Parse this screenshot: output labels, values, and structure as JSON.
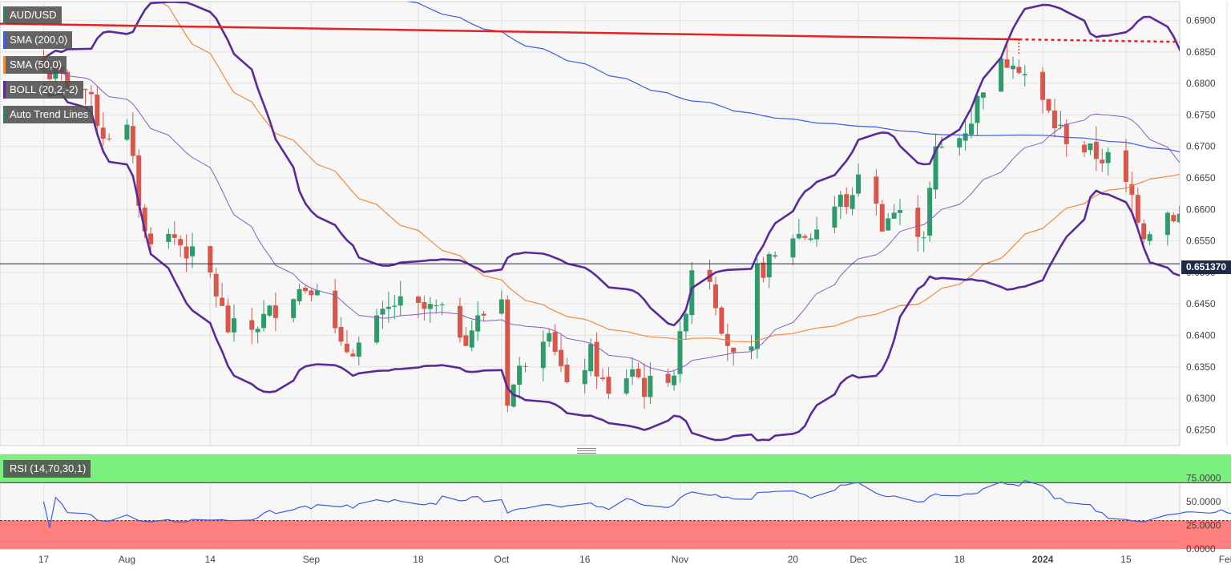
{
  "chart_data": [
    {
      "type": "candlestick",
      "symbol": "AUD/USD",
      "ylim": [
        0.6225,
        0.693
      ],
      "y_ticks": [
        "0.6250",
        "0.6300",
        "0.6350",
        "0.6400",
        "0.6450",
        "0.6500",
        "0.6550",
        "0.6600",
        "0.6650",
        "0.6700",
        "0.6750",
        "0.6800",
        "0.6850",
        "0.6900"
      ],
      "x_tick_labels": [
        "17",
        "Aug",
        "14",
        "Sep",
        "18",
        "Oct",
        "16",
        "Nov",
        "20",
        "Dec",
        "18",
        "2024",
        "15",
        "Feb"
      ],
      "last_price": "0.651370",
      "last_price_value": 0.65137,
      "grid": true,
      "indicators": [
        "SMA (200,0)",
        "SMA (50,0)",
        "BOLL (20,2,-2)",
        "Auto Trend Lines"
      ],
      "colors": {
        "up": "#2e9b6b",
        "down": "#d9574a",
        "sma200": "#3c5be0",
        "sma50": "#f08a3c",
        "boll_band": "#5a2a9a",
        "boll_mid": "#8a5cc0",
        "trend": "#e52222",
        "last_price_line": "#1d2a4a"
      },
      "ohlc_anchor_closes": [
        [
          "2023-07-17",
          0.682
        ],
        [
          "2023-07-24",
          0.679
        ],
        [
          "2023-07-27",
          0.672
        ],
        [
          "2023-07-31",
          0.6725
        ],
        [
          "2023-08-03",
          0.656
        ],
        [
          "2023-08-08",
          0.6555
        ],
        [
          "2023-08-14",
          0.6495
        ],
        [
          "2023-08-17",
          0.641
        ],
        [
          "2023-08-21",
          0.641
        ],
        [
          "2023-08-28",
          0.647
        ],
        [
          "2023-09-01",
          0.6485
        ],
        [
          "2023-09-05",
          0.6375
        ],
        [
          "2023-09-08",
          0.6385
        ],
        [
          "2023-09-14",
          0.645
        ],
        [
          "2023-09-18",
          0.644
        ],
        [
          "2023-09-21",
          0.644
        ],
        [
          "2023-09-26",
          0.64
        ],
        [
          "2023-09-29",
          0.6435
        ],
        [
          "2023-10-02",
          0.646
        ],
        [
          "2023-10-03",
          0.63
        ],
        [
          "2023-10-06",
          0.6365
        ],
        [
          "2023-10-10",
          0.642
        ],
        [
          "2023-10-13",
          0.631
        ],
        [
          "2023-10-17",
          0.637
        ],
        [
          "2023-10-20",
          0.63
        ],
        [
          "2023-10-24",
          0.635
        ],
        [
          "2023-10-26",
          0.6315
        ],
        [
          "2023-10-31",
          0.6345
        ],
        [
          "2023-11-01",
          0.639
        ],
        [
          "2023-11-03",
          0.651
        ],
        [
          "2023-11-06",
          0.6495
        ],
        [
          "2023-11-08",
          0.642
        ],
        [
          "2023-11-10",
          0.636
        ],
        [
          "2023-11-13",
          0.6365
        ],
        [
          "2023-11-14",
          0.65
        ],
        [
          "2023-11-17",
          0.652
        ],
        [
          "2023-11-20",
          0.656
        ],
        [
          "2023-11-23",
          0.656
        ],
        [
          "2023-11-28",
          0.6615
        ],
        [
          "2023-11-30",
          0.661
        ],
        [
          "2023-12-01",
          0.6665
        ],
        [
          "2023-12-05",
          0.658
        ],
        [
          "2023-12-07",
          0.6595
        ],
        [
          "2023-12-12",
          0.6565
        ],
        [
          "2023-12-14",
          0.669
        ],
        [
          "2023-12-18",
          0.6715
        ],
        [
          "2023-12-20",
          0.6745
        ],
        [
          "2023-12-22",
          0.68
        ],
        [
          "2023-12-27",
          0.6845
        ],
        [
          "2023-12-29",
          0.6815
        ],
        [
          "2024-01-03",
          0.6735
        ],
        [
          "2024-01-05",
          0.6715
        ],
        [
          "2024-01-09",
          0.669
        ],
        [
          "2024-01-12",
          0.668
        ],
        [
          "2024-01-16",
          0.662
        ],
        [
          "2024-01-18",
          0.6565
        ],
        [
          "2024-01-22",
          0.6595
        ],
        [
          "2024-01-24",
          0.659
        ],
        [
          "2024-01-26",
          0.658
        ],
        [
          "2024-01-30",
          0.6585
        ],
        [
          "2024-02-01",
          0.6573
        ],
        [
          "2024-02-02",
          0.6513
        ]
      ]
    },
    {
      "type": "line",
      "name": "RSI (14,70,30,1)",
      "ylim": [
        0,
        100
      ],
      "y_ticks": [
        "75.0000",
        "50.0000",
        "25.0000",
        "0.0000"
      ],
      "overbought": 70,
      "oversold": 30,
      "colors": {
        "line": "#3c5be0",
        "overbought_zone": "#7cf07c",
        "oversold_zone": "#ff7f7f"
      }
    }
  ]
}
